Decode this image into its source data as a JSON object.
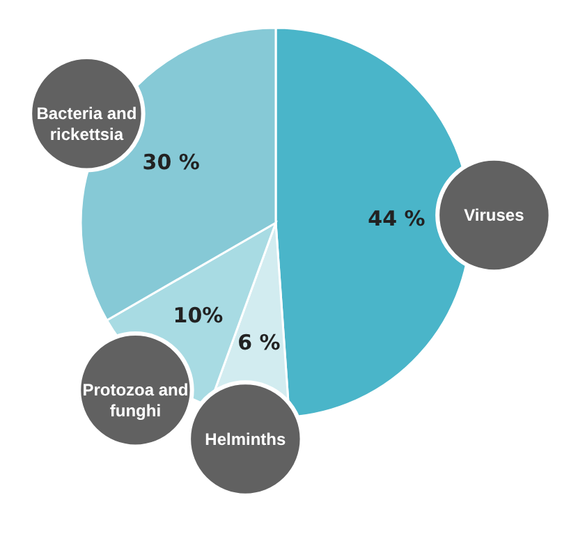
{
  "chart_data": {
    "type": "pie",
    "categories": [
      "Viruses",
      "Helminths",
      "Protozoa and funghi",
      "Bacteria and rickettsia"
    ],
    "values": [
      44,
      6,
      10,
      30
    ],
    "colors": [
      "#4ab5c9",
      "#d2ecf0",
      "#a8dbe3",
      "#86c9d6"
    ],
    "value_labels": [
      "44 %",
      "6 %",
      "10%",
      "30 %"
    ]
  }
}
